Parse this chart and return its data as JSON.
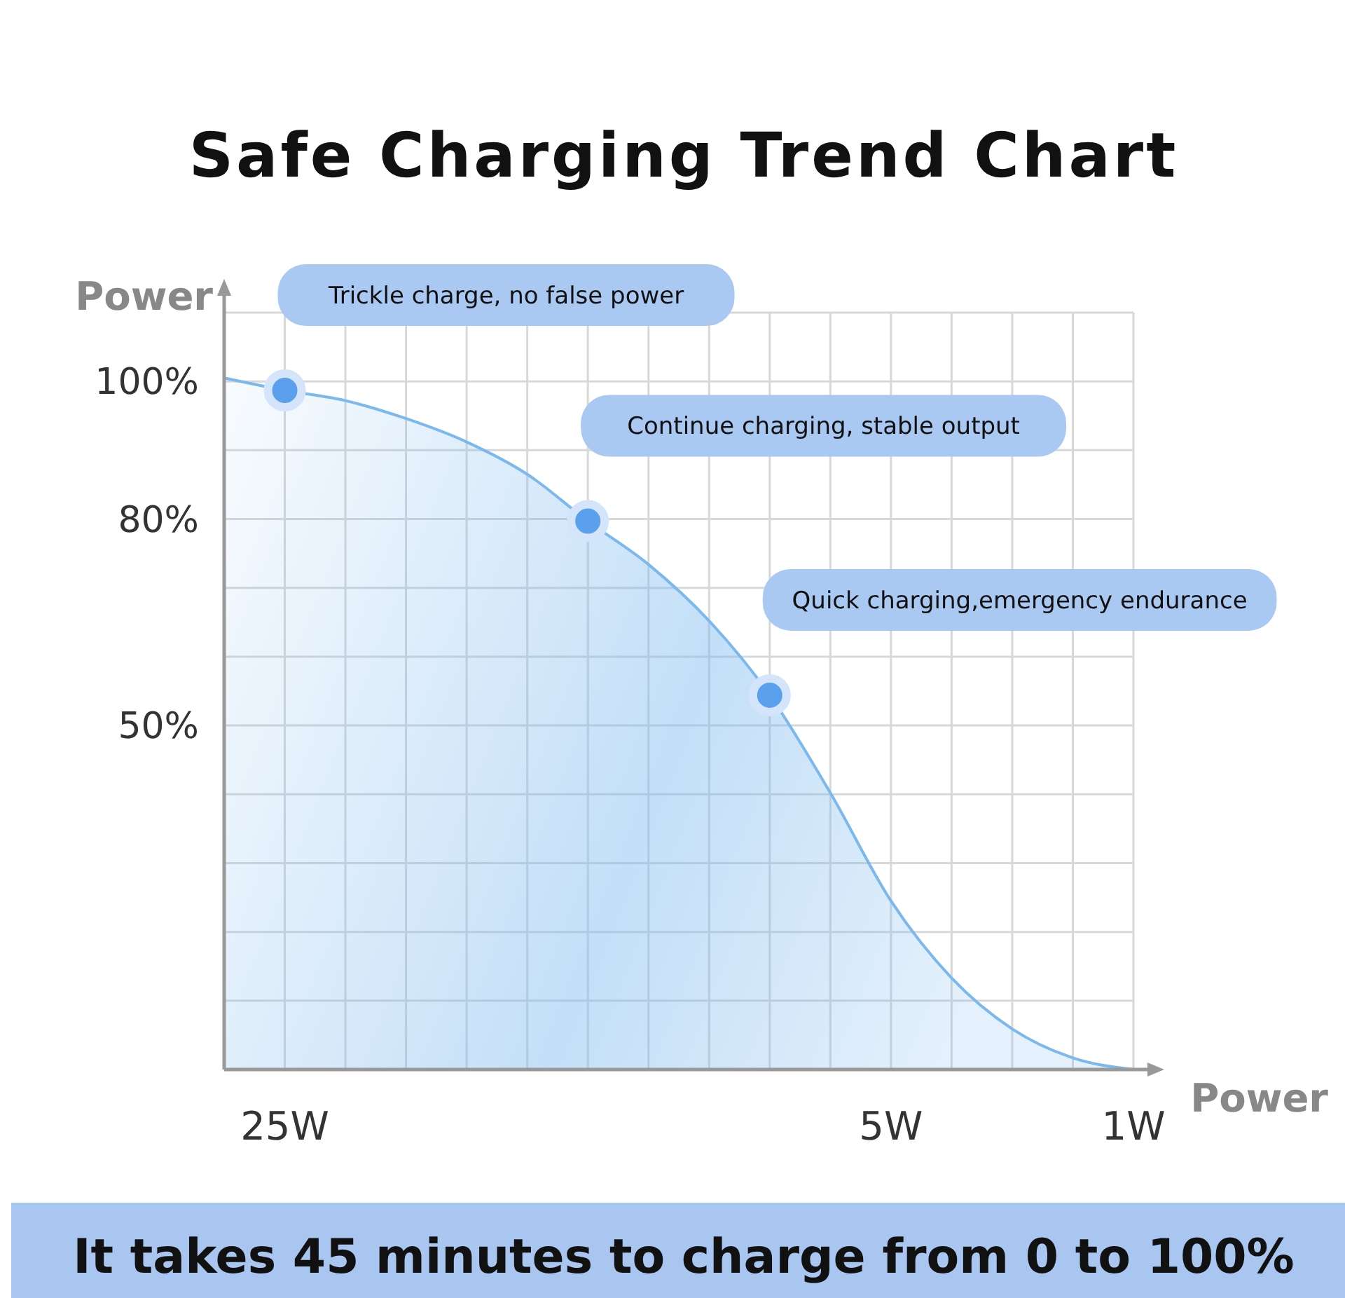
{
  "chart_data": {
    "type": "area",
    "title": "Safe Charging Trend Chart",
    "xlabel": "Power",
    "ylabel": "Power",
    "categories": [
      null,
      "25W",
      null,
      null,
      null,
      null,
      null,
      null,
      null,
      null,
      null,
      "5W",
      null,
      null,
      null,
      "1W"
    ],
    "series": [
      {
        "color": "#7ab8ee",
        "values": [
          100.5,
          98.7,
          97.2,
          94.6,
          91.2,
          86.5,
          79.7,
          73.4,
          65.2,
          54.4,
          40.2,
          24.5,
          13.3,
          5.9,
          1.7,
          0
        ]
      },
      {
        "type": "scatter",
        "marker": "circle",
        "color": "#5aa0ec",
        "values": [
          null,
          98.7,
          null,
          null,
          null,
          null,
          79.7,
          null,
          null,
          54.4,
          null,
          null,
          null,
          null,
          null,
          null
        ]
      }
    ],
    "ylim": [
      0,
      110
    ],
    "yticks": [
      {
        "value": 50,
        "label": "50%"
      },
      {
        "value": 80,
        "label": "80%"
      },
      {
        "value": 100,
        "label": "100%"
      }
    ],
    "grid": true,
    "annotations": [
      "Trickle charge, no false power",
      "Continue charging, stable output",
      "Quick charging,emergency endurance",
      "It takes 45 minutes to charge from 0 to 100%"
    ]
  }
}
